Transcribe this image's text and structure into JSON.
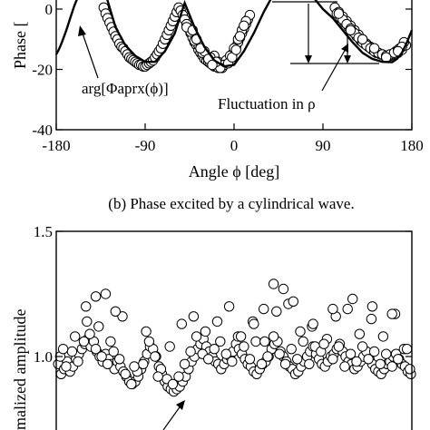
{
  "chart_data": [
    {
      "type": "scatter",
      "panel": "b",
      "caption": "(b) Phase excited by a cylindrical wave.",
      "xlabel": "Angle ϕ [deg]",
      "ylabel": "Phase [",
      "xlim": [
        -180,
        180
      ],
      "ylim": [
        -40,
        0
      ],
      "xticks": [
        -180,
        -90,
        0,
        90,
        180
      ],
      "yticks": [
        -40,
        -20,
        0
      ],
      "xtick_labels": [
        "-180",
        "-90",
        "0",
        "90",
        "180"
      ],
      "ytick_labels": [
        "-40",
        "-20",
        "0"
      ],
      "curve_label": "arg[Φaprx(ϕ)]",
      "annotation": "Fluctuation in ρ",
      "series": [
        {
          "style": "open-circles",
          "x": [
            -132,
            -130,
            -128,
            -126,
            -124,
            -122,
            -120,
            -118,
            -116,
            -114,
            -112,
            -110,
            -108,
            -106,
            -104,
            -102,
            -100,
            -98,
            -96,
            -94,
            -92,
            -90,
            -88,
            -86,
            -84,
            -82,
            -80,
            -78,
            -76,
            -74,
            -72,
            -70,
            -68,
            -66,
            -64,
            -62,
            -60,
            -58,
            -56,
            -54,
            -52,
            -50,
            -48,
            -46,
            -44,
            -42,
            -40,
            -38,
            -36,
            -34,
            -32,
            -30,
            -28,
            -26,
            -24,
            -22,
            -20,
            -18,
            -16,
            -14,
            -12,
            -10,
            -8,
            -6,
            -4,
            -2,
            0,
            2,
            4,
            6,
            8,
            10,
            12,
            14,
            16,
            -20,
            -16,
            -12,
            -8,
            -4,
            0,
            -24,
            -28,
            -32,
            -36,
            -40,
            -44,
            -48,
            4,
            8,
            12,
            -10,
            -6,
            -14,
            -18,
            -2,
            2,
            6,
            10,
            -30,
            -26,
            -22,
            -34,
            -38,
            -42,
            102,
            106,
            110,
            114,
            118,
            122,
            126,
            130,
            134,
            138,
            142,
            146,
            150,
            154,
            158,
            162,
            166,
            170,
            174,
            104,
            108,
            112,
            116,
            120,
            124,
            128,
            132,
            136,
            140,
            144,
            148,
            152,
            156,
            160,
            164,
            168,
            172,
            110,
            114,
            118,
            122,
            126,
            130,
            134,
            138,
            142,
            146,
            150,
            154,
            158,
            162,
            166,
            170,
            106,
            118,
            130,
            142,
            154,
            166
          ],
          "y": [
            0.5,
            -1.5,
            -3.0,
            -4.5,
            -6.0,
            -7.5,
            -9.0,
            -10.0,
            -11.5,
            -12.5,
            -13.0,
            -14.0,
            -15.0,
            -16.0,
            -16.5,
            -17.0,
            -17.5,
            -18.0,
            -18.5,
            -18.5,
            -19.0,
            -19.0,
            -18.5,
            -18.0,
            -17.5,
            -17.0,
            -16.0,
            -15.0,
            -14.0,
            -13.0,
            -11.5,
            -10.0,
            -8.5,
            -7.0,
            -5.5,
            -4.0,
            -2.5,
            -1.0,
            0.5,
            -0.5,
            -2.0,
            -3.5,
            -5.0,
            -6.5,
            -8.0,
            -9.5,
            -11.0,
            -12.0,
            -13.5,
            -14.5,
            -15.5,
            -16.5,
            -17.0,
            -17.5,
            -18.0,
            -18.5,
            -19.0,
            -19.0,
            -19.5,
            -19.0,
            -18.5,
            -18.0,
            -17.5,
            -17.0,
            -16.0,
            -15.0,
            -14.0,
            -12.5,
            -11.0,
            -9.5,
            -8.0,
            -6.5,
            -5.0,
            -3.5,
            -2.0,
            -15.5,
            -17.5,
            -19.5,
            -17.0,
            -15.5,
            -13.0,
            -16.0,
            -15.5,
            -14.5,
            -12.0,
            -10.5,
            -7.5,
            -6.0,
            -10.0,
            -7.0,
            -4.0,
            -18.5,
            -18.0,
            -19.5,
            -17.5,
            -16.0,
            -13.5,
            -9.0,
            -5.5,
            -14.0,
            -16.5,
            -18.5,
            -13.0,
            -10.0,
            -7.0,
            0.5,
            -1.0,
            -2.5,
            -4.0,
            -5.5,
            -7.0,
            -8.5,
            -10.0,
            -11.5,
            -12.5,
            -13.5,
            -14.5,
            -15.0,
            -15.5,
            -15.5,
            -15.0,
            -14.5,
            -13.5,
            -12.0,
            -1.5,
            -3.0,
            -4.5,
            -6.0,
            -7.5,
            -9.0,
            -10.5,
            -11.5,
            -12.5,
            -13.5,
            -14.5,
            -15.0,
            -15.5,
            -15.5,
            -15.0,
            -14.0,
            -13.0,
            -11.0,
            -3.5,
            -5.0,
            -6.5,
            -8.0,
            -9.5,
            -11.0,
            -12.0,
            -13.0,
            -14.0,
            -14.5,
            -15.0,
            -15.5,
            -15.0,
            -14.5,
            -13.5,
            -12.5,
            -1.5,
            -7.0,
            -10.0,
            -13.0,
            -16.0,
            -14.0
          ]
        },
        {
          "name": "arg[Φaprx(ϕ)]",
          "style": "solid-line",
          "x": [
            -180,
            -178,
            -176,
            -174,
            -172,
            -170,
            -168,
            -166,
            -164,
            -162,
            -160,
            -150,
            -140,
            -130,
            -120,
            -110,
            -100,
            -90,
            -80,
            -70,
            -60,
            -55,
            -50,
            -40,
            -30,
            -20,
            -10,
            0,
            10,
            20,
            30,
            40,
            50,
            60,
            70,
            80,
            90,
            100,
            110,
            120,
            130,
            140,
            150,
            160,
            165,
            170,
            175,
            180
          ],
          "y": [
            -15.0,
            -13.8,
            -12.4,
            -10.8,
            -9.0,
            -7.2,
            -5.2,
            -3.2,
            -1.2,
            0.8,
            2.5,
            10,
            10,
            5,
            -6,
            -12,
            -15.5,
            -17.5,
            -17.5,
            -14,
            -8,
            -3,
            2,
            -6,
            -12.5,
            -17,
            -19,
            -18.5,
            -14,
            -8,
            -1,
            5,
            10,
            10,
            8,
            4,
            0,
            -3,
            -7,
            -11,
            -14.5,
            -16.5,
            -17.5,
            -17.6,
            -16.5,
            -14.5,
            -11,
            -7
          ]
        }
      ]
    },
    {
      "type": "scatter",
      "panel": "c",
      "ylabel": "malized amplitude",
      "ylim": [
        0.6,
        1.5
      ],
      "yticks": [
        1.0,
        1.5
      ],
      "ytick_labels": [
        "1.0",
        "1.5"
      ],
      "xlim": [
        -180,
        180
      ],
      "series": [
        {
          "style": "open-circles",
          "x": [
            -178,
            -175,
            -172,
            -169,
            -166,
            -163,
            -160,
            -157,
            -154,
            -151,
            -148,
            -145,
            -142,
            -139,
            -136,
            -133,
            -130,
            -127,
            -124,
            -121,
            -118,
            -115,
            -112,
            -109,
            -106,
            -103,
            -100,
            -97,
            -94,
            -91,
            -88,
            -85,
            -82,
            -79,
            -76,
            -73,
            -70,
            -67,
            -64,
            -61,
            -58,
            -55,
            -52,
            -49,
            -46,
            -43,
            -40,
            -37,
            -34,
            -31,
            -28,
            -25,
            -22,
            -19,
            -16,
            -13,
            -10,
            -7,
            -4,
            -1,
            2,
            5,
            8,
            11,
            14,
            17,
            20,
            23,
            26,
            29,
            32,
            35,
            38,
            41,
            44,
            47,
            50,
            53,
            56,
            59,
            62,
            65,
            68,
            71,
            74,
            77,
            80,
            83,
            86,
            89,
            92,
            95,
            98,
            101,
            104,
            107,
            110,
            113,
            116,
            119,
            122,
            125,
            128,
            131,
            134,
            137,
            140,
            143,
            146,
            149,
            152,
            155,
            158,
            161,
            164,
            167,
            170,
            173,
            176,
            179,
            -176,
            -170,
            -164,
            -158,
            -152,
            -146,
            -140,
            -134,
            -128,
            -122,
            -116,
            -110,
            -104,
            -98,
            -92,
            -86,
            -80,
            -74,
            -68,
            -62,
            -56,
            -50,
            -44,
            -38,
            -32,
            -26,
            -20,
            -14,
            -8,
            -2,
            4,
            10,
            16,
            22,
            28,
            34,
            40,
            46,
            52,
            58,
            64,
            70,
            76,
            82,
            88,
            94,
            100,
            106,
            112,
            118,
            124,
            130,
            136,
            142,
            148,
            154,
            160,
            166,
            172,
            178,
            -173,
            -161,
            -149,
            -137,
            -125,
            -113,
            -101,
            -89,
            -77,
            -65,
            -53,
            -41,
            -29,
            -17,
            -5,
            7,
            19,
            31,
            43,
            55,
            67,
            79,
            91,
            103,
            115,
            127,
            139,
            151,
            163,
            175,
            -150,
            -140,
            -130,
            -120,
            20,
            30,
            40,
            50,
            60,
            80,
            100,
            120,
            140,
            160
          ],
          "y": [
            0.97,
            0.93,
            0.95,
            0.98,
            0.94,
            0.96,
            0.99,
            1.01,
            1.03,
            1.05,
            1.07,
            1.04,
            1.06,
            1.02,
            1.0,
            0.98,
            1.01,
            0.99,
            0.97,
            0.95,
            0.98,
            0.96,
            0.94,
            0.92,
            0.9,
            0.89,
            0.9,
            0.92,
            0.95,
            0.98,
            1.01,
            1.04,
            1.03,
            1.0,
            0.96,
            0.93,
            0.9,
            0.88,
            0.87,
            0.86,
            0.87,
            0.88,
            0.9,
            0.92,
            0.95,
            0.98,
            1.0,
            1.03,
            1.05,
            1.07,
            1.04,
            1.02,
            1.0,
            0.98,
            0.97,
            0.95,
            0.97,
            0.99,
            1.0,
            1.02,
            1.05,
            1.03,
            1.01,
            0.99,
            0.97,
            0.96,
            0.94,
            0.93,
            0.95,
            0.97,
            0.98,
            1.0,
            1.03,
            1.05,
            1.06,
            1.02,
            1.0,
            0.98,
            0.96,
            0.95,
            0.93,
            0.94,
            0.96,
            0.98,
            1.0,
            1.02,
            1.04,
            1.01,
            0.99,
            0.97,
            0.96,
            0.98,
            1.0,
            1.01,
            1.03,
            1.05,
            1.02,
            1.0,
            0.98,
            0.97,
            0.95,
            0.96,
            0.98,
            1.0,
            1.02,
            0.99,
            0.97,
            0.95,
            0.94,
            0.93,
            0.95,
            0.97,
            0.98,
            1.0,
            1.01,
            0.99,
            0.97,
            0.96,
            0.94,
            0.93,
            1.0,
            0.96,
            1.02,
            0.98,
            1.06,
            1.09,
            1.03,
            1.0,
            0.97,
            1.02,
            0.99,
            0.93,
            0.89,
            0.94,
            0.97,
            1.06,
            1.0,
            0.95,
            0.91,
            0.89,
            0.92,
            0.97,
            1.02,
            1.08,
            1.01,
            0.99,
            1.03,
            1.06,
            1.01,
            0.98,
            1.08,
            1.04,
            0.99,
            1.06,
            0.97,
            1.0,
            1.08,
            1.01,
            0.97,
            1.03,
            0.99,
            1.06,
            0.97,
            1.04,
            1.02,
            1.07,
            0.99,
            1.04,
            0.96,
            1.01,
            0.98,
            1.04,
            0.99,
            1.02,
            0.97,
            1.01,
            0.96,
            0.99,
            1.03,
            0.95,
            1.03,
            1.08,
            1.14,
            1.12,
            1.06,
            1.16,
            0.96,
            1.1,
            0.92,
            1.04,
            1.13,
            1.16,
            1.1,
            1.14,
            1.2,
            1.08,
            1.14,
            1.06,
            1.18,
            1.21,
            1.1,
            1.12,
            1.05,
            1.16,
            1.19,
            1.09,
            1.15,
            1.08,
            1.17,
            1.03,
            1.2,
            1.24,
            1.25,
            1.18,
            1.13,
            1.19,
            1.29,
            1.27,
            1.22,
            1.13,
            1.19,
            1.23,
            1.2,
            1.17
          ]
        }
      ]
    }
  ]
}
